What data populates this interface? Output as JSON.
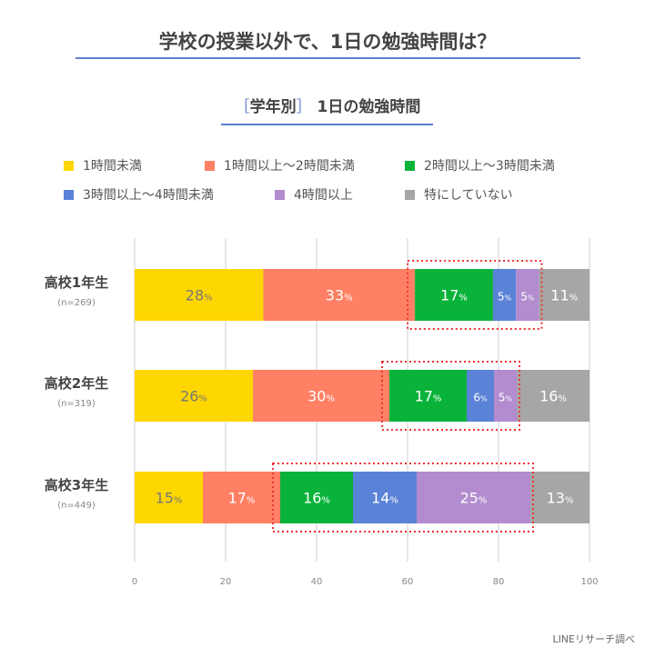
{
  "title": "学校の授業以外で、1日の勉強時間は？",
  "subtitle": {
    "bracket_open": "［",
    "group": "学年別",
    "bracket_close": "］",
    "text": "1日の勉強時間"
  },
  "footer": "LINEリサーチ調べ",
  "chart_data": {
    "type": "bar",
    "orientation": "horizontal",
    "stacked": true,
    "categories": [
      "高校1年生",
      "高校2年生",
      "高校3年生"
    ],
    "sample_sizes": [
      "(n=269)",
      "(n=319)",
      "(n=449)"
    ],
    "series": [
      {
        "name": "1時間未満",
        "color": "#ffd700",
        "label_color": "#777777",
        "values": [
          28,
          26,
          15
        ]
      },
      {
        "name": "1時間以上～2時間未満",
        "color": "#ff8064",
        "label_color": "#ffffff",
        "values": [
          33,
          30,
          17
        ]
      },
      {
        "name": "2時間以上～3時間未満",
        "color": "#09b33a",
        "label_color": "#ffffff",
        "values": [
          17,
          17,
          16
        ]
      },
      {
        "name": "3時間以上～4時間未満",
        "color": "#5a82d6",
        "label_color": "#ffffff",
        "values": [
          5,
          6,
          14
        ]
      },
      {
        "name": "4時間以上",
        "color": "#b28ccf",
        "label_color": "#ffffff",
        "values": [
          5,
          5,
          25
        ]
      },
      {
        "name": "特にしていない",
        "color": "#a6a6a6",
        "label_color": "#ffffff",
        "values": [
          11,
          16,
          13
        ]
      }
    ],
    "value_suffix": "%",
    "xlim": [
      0,
      100
    ],
    "xticks": [
      "0",
      "20",
      "40",
      "60",
      "80",
      "100"
    ],
    "grid": true,
    "legend": "top",
    "highlight": {
      "series": [
        "2時間以上～3時間未満",
        "3時間以上～4時間未満",
        "4時間以上"
      ],
      "color": "#ee3333",
      "style": "dotted"
    }
  }
}
